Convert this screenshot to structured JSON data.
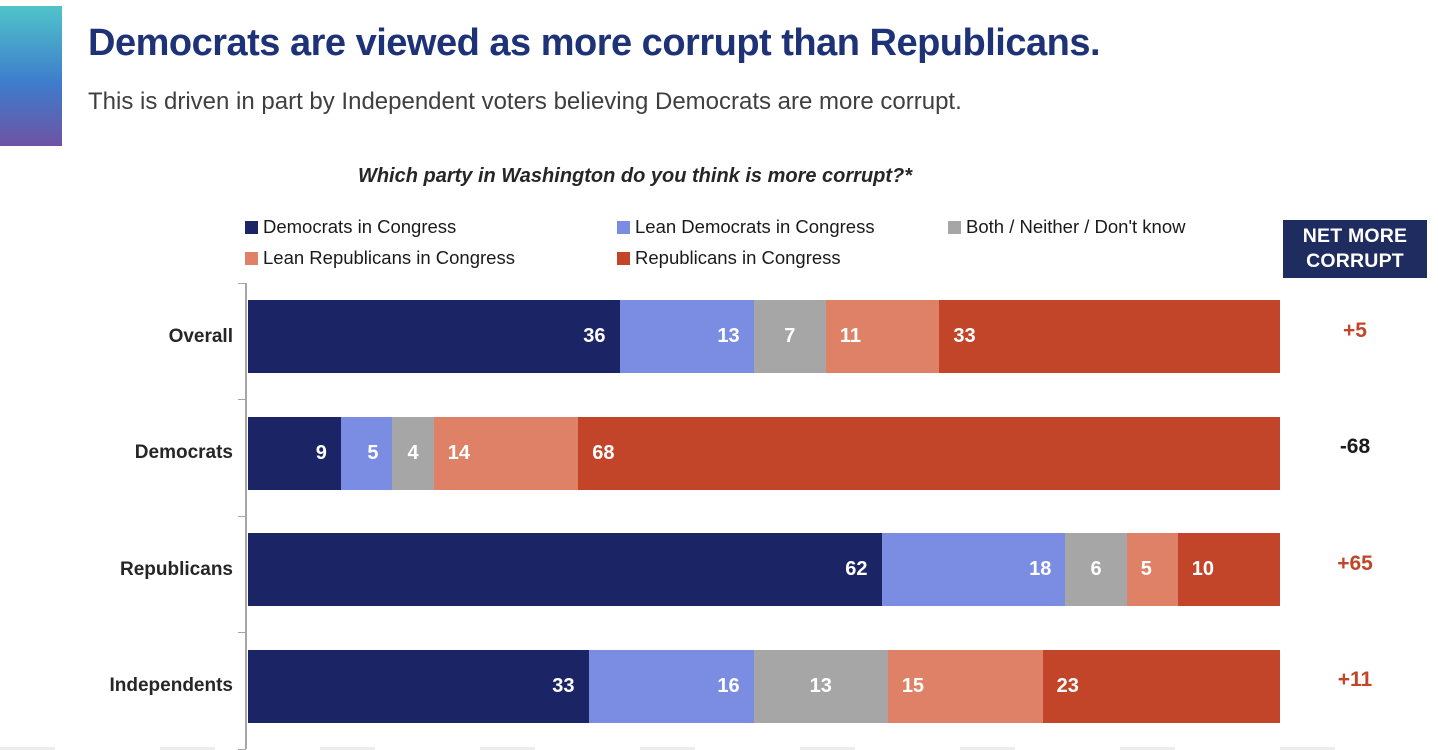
{
  "header": {
    "title": "Democrats are viewed as more corrupt than Republicans.",
    "subtitle": "This is driven in part by Independent voters believing Democrats are more corrupt."
  },
  "chart_data": {
    "type": "bar",
    "stacked": true,
    "orientation": "horizontal",
    "title": "Which party in Washington do you think is more corrupt?*",
    "categories": [
      "Overall",
      "Democrats",
      "Republicans",
      "Independents"
    ],
    "series": [
      {
        "name": "Democrats in Congress",
        "color": "#1B2566",
        "values": [
          36,
          9,
          62,
          33
        ]
      },
      {
        "name": "Lean Democrats in Congress",
        "color": "#7B8DE3",
        "values": [
          13,
          5,
          18,
          16
        ]
      },
      {
        "name": "Both / Neither / Don't know",
        "color": "#A6A6A6",
        "values": [
          7,
          4,
          6,
          13
        ]
      },
      {
        "name": "Lean Republicans in Congress",
        "color": "#DF8166",
        "values": [
          11,
          14,
          5,
          15
        ]
      },
      {
        "name": "Republicans in Congress",
        "color": "#C2452A",
        "values": [
          33,
          68,
          10,
          23
        ]
      }
    ],
    "net_column": {
      "header": "NET MORE CORRUPT",
      "values": [
        {
          "label": "+5",
          "color": "#C2452A"
        },
        {
          "label": "-68",
          "color": "#1A1A1A"
        },
        {
          "label": "+65",
          "color": "#C2452A"
        },
        {
          "label": "+11",
          "color": "#C2452A"
        }
      ]
    },
    "xlim": [
      0,
      100
    ],
    "legend_position": "top",
    "grid": false
  },
  "colors": {
    "title_text": "#1E3277",
    "subtitle_text": "#3F3F3F",
    "badge_background": "#1F2C5F",
    "axis": "#A6A6A6",
    "accent_gradient_top": "#4FC4C9",
    "accent_gradient_middle": "#3E7CCC",
    "accent_gradient_bottom": "#6E53A5"
  }
}
